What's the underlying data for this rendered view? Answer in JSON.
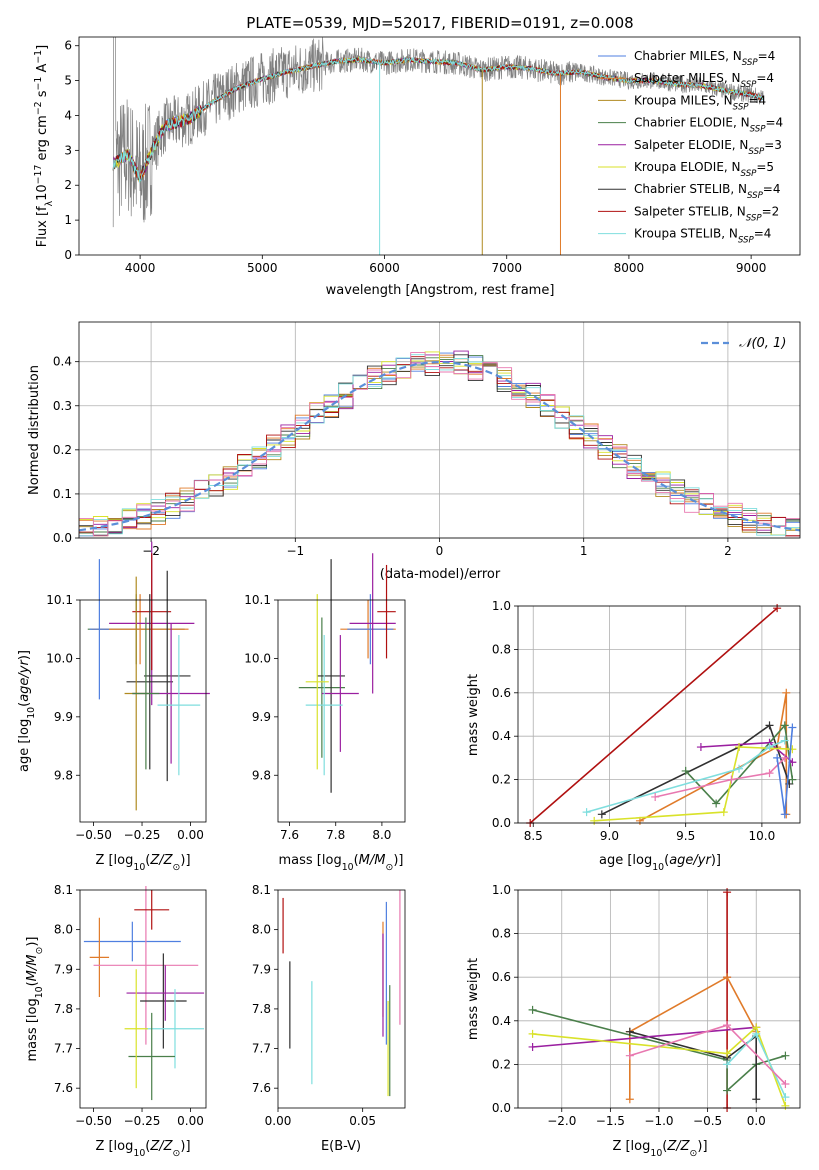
{
  "chart_data": [
    {
      "type": "line",
      "title": "PLATE=0539, MJD=52017, FIBERID=0191, z=0.008",
      "xlabel": "wavelength [Angstrom, rest frame]",
      "ylabel": "Flux [f_λ10^-17 erg cm^-2 s^-1 A^-1]",
      "xlim": [
        3500,
        9400
      ],
      "ylim": [
        0,
        6.25
      ],
      "xticks": [
        4000,
        5000,
        6000,
        7000,
        8000,
        9000
      ],
      "yticks": [
        0,
        1,
        2,
        3,
        4,
        5,
        6
      ],
      "legend_position": "top-right",
      "series": [
        {
          "name": "Chabrier MILES, N_SSP=4",
          "color": "#4f7fe0"
        },
        {
          "name": "Salpeter MILES, N_SSP=4",
          "color": "#e07b2a"
        },
        {
          "name": "Kroupa MILES, N_SSP=4",
          "color": "#b08a20"
        },
        {
          "name": "Chabrier ELODIE, N_SSP=4",
          "color": "#4a7f4a"
        },
        {
          "name": "Salpeter ELODIE, N_SSP=3",
          "color": "#9a1fa0"
        },
        {
          "name": "Kroupa ELODIE, N_SSP=5",
          "color": "#d9e22a"
        },
        {
          "name": "Chabrier STELIB, N_SSP=4",
          "color": "#303030"
        },
        {
          "name": "Salpeter STELIB, N_SSP=2",
          "color": "#b01010"
        },
        {
          "name": "Kroupa STELIB, N_SSP=4",
          "color": "#7fdede"
        }
      ],
      "data_color": "#808080",
      "spectrum_anchors": {
        "x": [
          3780,
          3900,
          4000,
          4100,
          4200,
          4300,
          4400,
          4600,
          4800,
          5000,
          5200,
          5400,
          5600,
          5800,
          6000,
          6200,
          6400,
          6600,
          6800,
          7000,
          7200,
          7400,
          7600,
          7800,
          8000,
          8200,
          8400,
          8600,
          8800,
          9000,
          9100
        ],
        "y": [
          2.6,
          2.9,
          2.2,
          3.0,
          3.7,
          3.8,
          3.9,
          4.4,
          4.8,
          5.05,
          5.25,
          5.4,
          5.55,
          5.6,
          5.5,
          5.6,
          5.55,
          5.5,
          5.3,
          5.4,
          5.35,
          5.2,
          5.25,
          5.1,
          5.0,
          5.0,
          4.9,
          4.85,
          4.7,
          4.6,
          4.5
        ]
      },
      "dropouts": [
        5960,
        6800,
        7440
      ],
      "grid": false
    },
    {
      "type": "step",
      "xlabel": "(data-model)/error",
      "ylabel": "Normed distribution",
      "xlim": [
        -2.5,
        2.5
      ],
      "ylim": [
        0,
        0.49
      ],
      "xticks": [
        -2,
        -1,
        0,
        1,
        2
      ],
      "yticks": [
        0.0,
        0.1,
        0.2,
        0.3,
        0.4
      ],
      "legend": "𝒩(0, 1)",
      "legend_position": "top-right",
      "bin_width": 0.1,
      "gaussian": {
        "mean": 0,
        "sigma": 1,
        "color": "#5b8fd9"
      },
      "grid": true
    },
    {
      "type": "errorbar",
      "xlabel": "Z [log10(Z/Z☉)]",
      "ylabel": "age  [log10(age/yr)]",
      "xlim": [
        -0.57,
        0.08
      ],
      "ylim": [
        9.72,
        10.1
      ],
      "xticks": [
        -0.5,
        -0.25,
        0.0
      ],
      "yticks": [
        9.8,
        9.9,
        10.0,
        10.1
      ],
      "points": [
        {
          "x": -0.28,
          "y": 10.05,
          "xe": 0.25,
          "ye": 0.06,
          "c": 3
        },
        {
          "x": -0.26,
          "y": 10.05,
          "xe": 0.25,
          "ye": 0.06,
          "c": 1
        },
        {
          "x": -0.47,
          "y": 10.05,
          "xe": 0.05,
          "ye": 0.12,
          "c": 0
        },
        {
          "x": -0.2,
          "y": 10.06,
          "xe": 0.22,
          "ye": 0.14,
          "c": 4
        },
        {
          "x": -0.2,
          "y": 10.08,
          "xe": 0.1,
          "ye": 0.1,
          "c": 7
        },
        {
          "x": -0.21,
          "y": 9.96,
          "xe": 0.12,
          "ye": 0.15,
          "c": 6
        },
        {
          "x": -0.12,
          "y": 9.97,
          "xe": 0.12,
          "ye": 0.18,
          "c": 6
        },
        {
          "x": -0.1,
          "y": 9.94,
          "xe": 0.2,
          "ye": 0.12,
          "c": 4
        },
        {
          "x": -0.06,
          "y": 9.92,
          "xe": 0.11,
          "ye": 0.12,
          "c": 8
        },
        {
          "x": -0.28,
          "y": 9.94,
          "xe": 0.06,
          "ye": 0.2,
          "c": 2
        },
        {
          "x": -0.23,
          "y": 9.94,
          "xe": 0.07,
          "ye": 0.13,
          "c": 3
        }
      ],
      "grid": false
    },
    {
      "type": "errorbar",
      "xlabel": "mass [log10(M/M☉)]",
      "ylabel": "",
      "xlim": [
        7.55,
        8.1
      ],
      "ylim": [
        9.72,
        10.1
      ],
      "xticks": [
        7.6,
        7.8,
        8.0
      ],
      "yticks": [
        9.8,
        9.9,
        10.0,
        10.1
      ],
      "points": [
        {
          "x": 7.94,
          "y": 10.05,
          "xe": 0.12,
          "ye": 0.05,
          "c": 1
        },
        {
          "x": 7.95,
          "y": 10.05,
          "xe": 0.1,
          "ye": 0.06,
          "c": 0
        },
        {
          "x": 7.96,
          "y": 10.06,
          "xe": 0.1,
          "ye": 0.12,
          "c": 4
        },
        {
          "x": 8.02,
          "y": 10.08,
          "xe": 0.04,
          "ye": 0.08,
          "c": 7
        },
        {
          "x": 7.74,
          "y": 9.95,
          "xe": 0.1,
          "ye": 0.12,
          "c": 3
        },
        {
          "x": 7.78,
          "y": 9.97,
          "xe": 0.06,
          "ye": 0.2,
          "c": 6
        },
        {
          "x": 7.82,
          "y": 9.94,
          "xe": 0.08,
          "ye": 0.1,
          "c": 4
        },
        {
          "x": 7.75,
          "y": 9.92,
          "xe": 0.08,
          "ye": 0.12,
          "c": 8
        },
        {
          "x": 7.72,
          "y": 9.96,
          "xe": 0.05,
          "ye": 0.15,
          "c": 5
        }
      ],
      "grid": false
    },
    {
      "type": "line",
      "xlabel": "age  [log10(age/yr)]",
      "ylabel": "mass weight",
      "xlim": [
        8.4,
        10.25
      ],
      "ylim": [
        0,
        1.0
      ],
      "xticks": [
        8.5,
        9.0,
        9.5,
        10.0
      ],
      "yticks": [
        0.0,
        0.2,
        0.4,
        0.6,
        0.8,
        1.0
      ],
      "series": [
        {
          "c": 7,
          "x": [
            8.48,
            10.1
          ],
          "y": [
            0.0,
            0.99
          ]
        },
        {
          "c": 1,
          "x": [
            9.2,
            10.1,
            10.16,
            10.16
          ],
          "y": [
            0.01,
            0.35,
            0.6,
            0.04
          ]
        },
        {
          "c": 6,
          "x": [
            8.95,
            9.85,
            10.05,
            10.18
          ],
          "y": [
            0.04,
            0.35,
            0.45,
            0.18
          ]
        },
        {
          "c": 3,
          "x": [
            9.5,
            9.7,
            10.15,
            10.2
          ],
          "y": [
            0.24,
            0.09,
            0.45,
            0.2
          ]
        },
        {
          "c": 4,
          "x": [
            9.6,
            10.05,
            10.2
          ],
          "y": [
            0.35,
            0.37,
            0.28
          ]
        },
        {
          "c": 5,
          "x": [
            8.9,
            9.75,
            9.85,
            10.2
          ],
          "y": [
            0.01,
            0.05,
            0.35,
            0.34
          ]
        },
        {
          "c": 8,
          "x": [
            8.85,
            9.85,
            10.05,
            10.15
          ],
          "y": [
            0.05,
            0.25,
            0.35,
            0.38
          ]
        },
        {
          "c": 9,
          "x": [
            9.3,
            9.8,
            10.05,
            10.15
          ],
          "y": [
            0.12,
            0.2,
            0.23,
            0.3
          ]
        },
        {
          "c": 0,
          "x": [
            10.1,
            10.15,
            10.2
          ],
          "y": [
            0.3,
            0.04,
            0.44
          ]
        }
      ],
      "grid": true
    },
    {
      "type": "errorbar",
      "xlabel": "Z [log10(Z/Z☉)]",
      "ylabel": "mass [log10(M/M☉)]",
      "xlim": [
        -0.57,
        0.08
      ],
      "ylim": [
        7.55,
        8.1
      ],
      "xticks": [
        -0.5,
        -0.25,
        0.0
      ],
      "yticks": [
        7.6,
        7.7,
        7.8,
        7.9,
        8.0,
        8.1
      ],
      "points": [
        {
          "x": -0.3,
          "y": 7.97,
          "xe": 0.25,
          "ye": 0.05,
          "c": 0
        },
        {
          "x": -0.47,
          "y": 7.93,
          "xe": 0.05,
          "ye": 0.1,
          "c": 1
        },
        {
          "x": -0.23,
          "y": 7.91,
          "xe": 0.27,
          "ye": 0.2,
          "c": 9
        },
        {
          "x": -0.2,
          "y": 8.05,
          "xe": 0.09,
          "ye": 0.05,
          "c": 7
        },
        {
          "x": -0.14,
          "y": 7.82,
          "xe": 0.12,
          "ye": 0.12,
          "c": 6
        },
        {
          "x": -0.13,
          "y": 7.84,
          "xe": 0.2,
          "ye": 0.07,
          "c": 4
        },
        {
          "x": -0.08,
          "y": 7.75,
          "xe": 0.15,
          "ye": 0.1,
          "c": 8
        },
        {
          "x": -0.2,
          "y": 7.68,
          "xe": 0.12,
          "ye": 0.11,
          "c": 3
        },
        {
          "x": -0.28,
          "y": 7.75,
          "xe": 0.06,
          "ye": 0.15,
          "c": 5
        }
      ],
      "grid": false
    },
    {
      "type": "errorbar",
      "xlabel": "E(B-V)",
      "ylabel": "",
      "xlim": [
        0.0,
        0.075
      ],
      "ylim": [
        7.55,
        8.1
      ],
      "xticks": [
        0.0,
        0.05
      ],
      "yticks": [
        7.6,
        7.7,
        7.8,
        7.9,
        8.0,
        8.1
      ],
      "points": [
        {
          "x": 0.003,
          "y": 8.01,
          "xe": 0.0,
          "ye": 0.07,
          "c": 7
        },
        {
          "x": 0.007,
          "y": 7.81,
          "xe": 0.0,
          "ye": 0.11,
          "c": 6
        },
        {
          "x": 0.02,
          "y": 7.74,
          "xe": 0.0,
          "ye": 0.13,
          "c": 8
        },
        {
          "x": 0.062,
          "y": 7.9,
          "xe": 0.0,
          "ye": 0.12,
          "c": 1
        },
        {
          "x": 0.062,
          "y": 7.86,
          "xe": 0.0,
          "ye": 0.13,
          "c": 4
        },
        {
          "x": 0.064,
          "y": 7.89,
          "xe": 0.0,
          "ye": 0.18,
          "c": 0
        },
        {
          "x": 0.066,
          "y": 7.72,
          "xe": 0.0,
          "ye": 0.14,
          "c": 3
        },
        {
          "x": 0.065,
          "y": 7.7,
          "xe": 0.0,
          "ye": 0.12,
          "c": 5
        },
        {
          "x": 0.072,
          "y": 7.93,
          "xe": 0.0,
          "ye": 0.17,
          "c": 9
        }
      ],
      "grid": false
    },
    {
      "type": "line",
      "xlabel": "Z [log10(Z/Z☉)]",
      "ylabel": "mass weight",
      "xlim": [
        -2.45,
        0.45
      ],
      "ylim": [
        0,
        1.0
      ],
      "xticks": [
        -2.0,
        -1.5,
        -1.0,
        -0.5,
        0.0
      ],
      "yticks": [
        0.0,
        0.2,
        0.4,
        0.6,
        0.8,
        1.0
      ],
      "series": [
        {
          "c": 7,
          "x": [
            -0.3,
            -0.3,
            -0.3
          ],
          "y": [
            0.0,
            0.99,
            0.6
          ]
        },
        {
          "c": 1,
          "x": [
            -1.3,
            -1.3,
            -0.3,
            0.0
          ],
          "y": [
            0.04,
            0.35,
            0.6,
            0.35
          ]
        },
        {
          "c": 3,
          "x": [
            -2.3,
            -0.3,
            -0.3,
            0.0,
            0.3
          ],
          "y": [
            0.45,
            0.22,
            0.08,
            0.2,
            0.24
          ]
        },
        {
          "c": 6,
          "x": [
            -1.3,
            -0.3,
            0.0,
            0.0
          ],
          "y": [
            0.35,
            0.23,
            0.33,
            0.04
          ]
        },
        {
          "c": 4,
          "x": [
            -2.3,
            0.0
          ],
          "y": [
            0.28,
            0.37
          ]
        },
        {
          "c": 5,
          "x": [
            -2.3,
            -0.3,
            0.0,
            0.3
          ],
          "y": [
            0.34,
            0.25,
            0.37,
            0.01
          ]
        },
        {
          "c": 8,
          "x": [
            -0.3,
            0.0,
            0.3
          ],
          "y": [
            0.2,
            0.34,
            0.05
          ]
        },
        {
          "c": 9,
          "x": [
            -1.3,
            -0.3,
            0.3
          ],
          "y": [
            0.24,
            0.38,
            0.11
          ]
        }
      ],
      "grid": true
    }
  ],
  "palette": [
    "#4f7fe0",
    "#e07b2a",
    "#b08a20",
    "#4a7f4a",
    "#9a1fa0",
    "#d9e22a",
    "#303030",
    "#b01010",
    "#7fdede",
    "#e878b0"
  ]
}
